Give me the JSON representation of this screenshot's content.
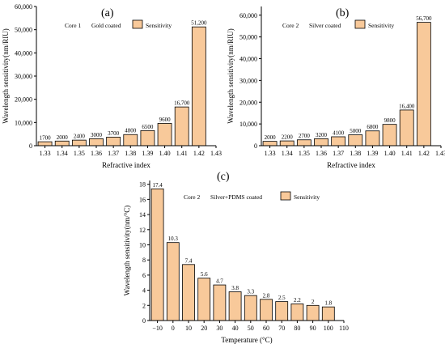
{
  "figure": {
    "panels": [
      {
        "letter": "(a)",
        "core": "Core 1",
        "coating": "Gold coated",
        "legend": "Sensitivity"
      },
      {
        "letter": "(b)",
        "core": "Core 2",
        "coating": "Silver coated",
        "legend": "Sensitivity"
      },
      {
        "letter": "(c)",
        "core": "Core 2",
        "coating": "Silver+PDMS coated",
        "legend": "Sensitivity"
      }
    ]
  },
  "colors": {
    "bar": "#f8c99a",
    "stroke": "#000000"
  },
  "chart_data": [
    {
      "type": "bar",
      "xlabel": "Refractive index",
      "ylabel": "Wavelength sensitivity(nm/RIU)",
      "x": [
        1.33,
        1.34,
        1.35,
        1.36,
        1.37,
        1.38,
        1.39,
        1.4,
        1.41,
        1.42
      ],
      "x_tick_labels": [
        "1.33",
        "1.34",
        "1.35",
        "1.36",
        "1.37",
        "1.38",
        "1.39",
        "1.40",
        "1.41",
        "1.42",
        "1.43"
      ],
      "values": [
        1700,
        2000,
        2400,
        3000,
        3700,
        4800,
        6500,
        9600,
        16700,
        51200
      ],
      "value_labels": [
        "1700",
        "2000",
        "2400",
        "3000",
        "3700",
        "4800",
        "6500",
        "9600",
        "16,700",
        "51,200"
      ],
      "y_tick_labels": [
        "0",
        "10,000",
        "20,000",
        "30,000",
        "40,000",
        "50,000",
        "60,000"
      ],
      "xlim": [
        1.325,
        1.43
      ],
      "ylim": [
        0,
        60000
      ],
      "legend": [
        "Sensitivity"
      ]
    },
    {
      "type": "bar",
      "xlabel": "Refractive index",
      "ylabel": "Wavelength sensitivity(nm/RIU)",
      "x": [
        1.33,
        1.34,
        1.35,
        1.36,
        1.37,
        1.38,
        1.39,
        1.4,
        1.41,
        1.42
      ],
      "x_tick_labels": [
        "1.33",
        "1.34",
        "1.35",
        "1.36",
        "1.37",
        "1.38",
        "1.39",
        "1.40",
        "1.41",
        "1.42",
        "1.43"
      ],
      "values": [
        2000,
        2200,
        2700,
        3200,
        4100,
        5000,
        6800,
        9800,
        16400,
        56700
      ],
      "value_labels": [
        "2000",
        "2200",
        "2700",
        "3200",
        "4100",
        "5000",
        "6800",
        "9800",
        "16,400",
        "56,700"
      ],
      "y_tick_labels": [
        "0",
        "10,000",
        "20,000",
        "30,000",
        "40,000",
        "50,000",
        "60,000"
      ],
      "xlim": [
        1.325,
        1.43
      ],
      "ylim": [
        0,
        64000
      ],
      "legend": [
        "Sensitivity"
      ]
    },
    {
      "type": "bar",
      "xlabel": "Temperature (°C)",
      "ylabel": "Wavelength sensitivity(nm/°C)",
      "x": [
        -10,
        0,
        10,
        20,
        30,
        40,
        50,
        60,
        70,
        80,
        90,
        100
      ],
      "x_tick_labels": [
        "−10",
        "0",
        "10",
        "20",
        "30",
        "40",
        "50",
        "60",
        "70",
        "80",
        "90",
        "100",
        "110"
      ],
      "values": [
        17.4,
        10.3,
        7.4,
        5.6,
        4.7,
        3.8,
        3.3,
        2.8,
        2.5,
        2.2,
        2,
        1.8
      ],
      "value_labels": [
        "17.4",
        "10.3",
        "7.4",
        "5.6",
        "4.7",
        "3.8",
        "3.3",
        "2.8",
        "2.5",
        "2.2",
        "2",
        "1.8"
      ],
      "y_tick_labels": [
        "0",
        "2",
        "4",
        "6",
        "8",
        "10",
        "12",
        "14",
        "16",
        "18"
      ],
      "xlim": [
        -15,
        110
      ],
      "ylim": [
        0,
        18.5
      ],
      "legend": [
        "Sensitivity"
      ]
    }
  ]
}
